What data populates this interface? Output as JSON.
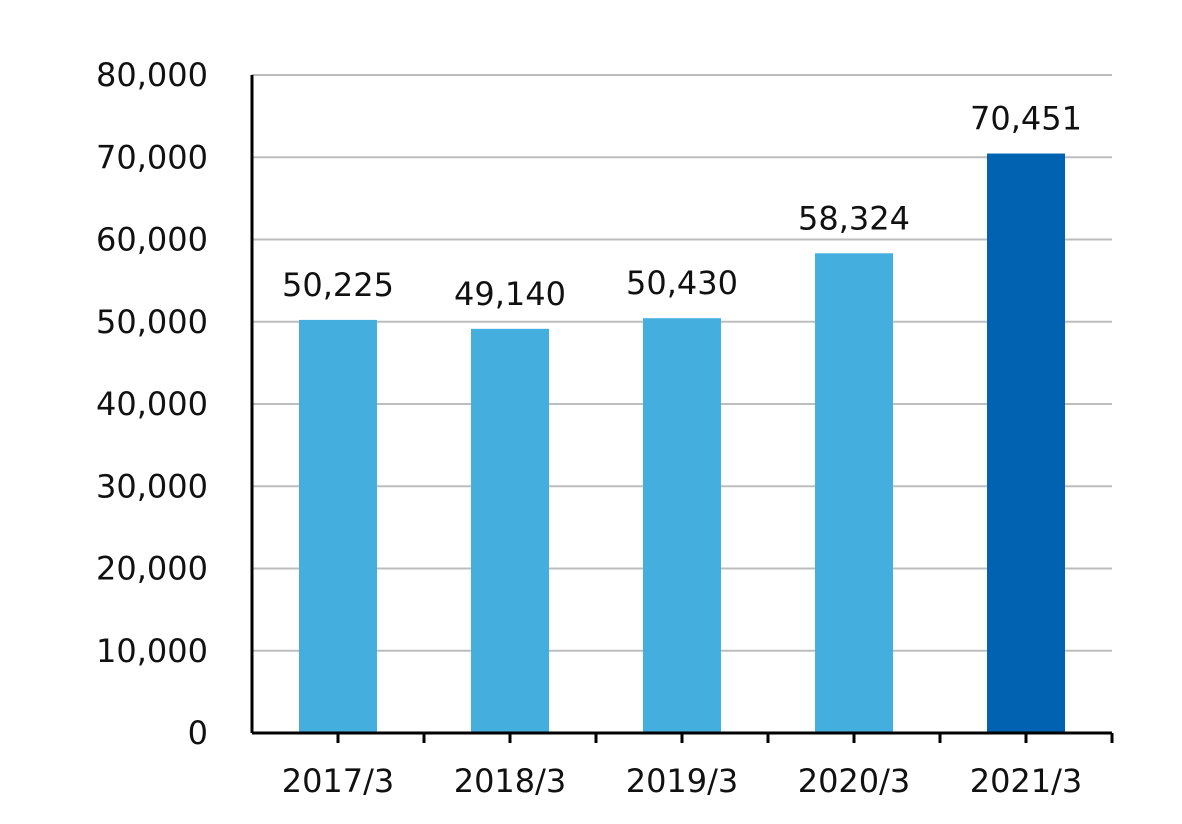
{
  "chart_data": {
    "type": "bar",
    "categories": [
      "2017/3",
      "2018/3",
      "2019/3",
      "2020/3",
      "2021/3"
    ],
    "values": [
      50225,
      49140,
      50430,
      58324,
      70451
    ],
    "value_labels": [
      "50,225",
      "49,140",
      "50,430",
      "58,324",
      "70,451"
    ],
    "ylim": [
      0,
      80000
    ],
    "yticks": [
      0,
      10000,
      20000,
      30000,
      40000,
      50000,
      60000,
      70000,
      80000
    ],
    "ytick_labels": [
      "0",
      "10,000",
      "20,000",
      "30,000",
      "40,000",
      "50,000",
      "60,000",
      "70,000",
      "80,000"
    ],
    "grid": true,
    "colors": {
      "default_bar": "#44afdf",
      "highlight_bar": "#0062b1"
    },
    "highlight_index": 4
  }
}
